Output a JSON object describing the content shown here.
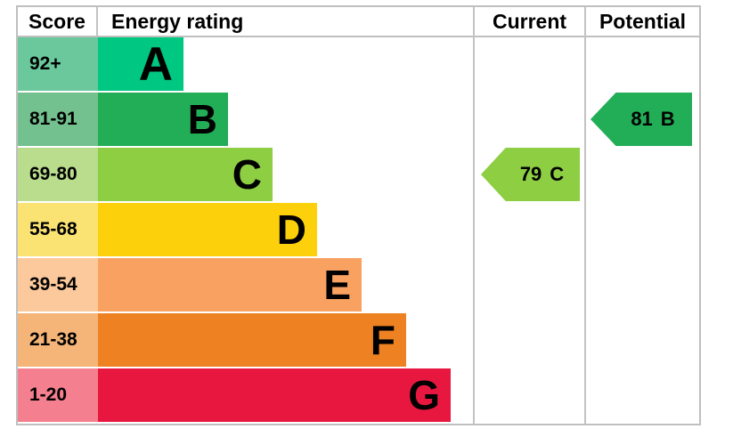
{
  "header": {
    "score": "Score",
    "energy_rating": "Energy rating",
    "current": "Current",
    "potential": "Potential"
  },
  "bands": [
    {
      "score": "92+",
      "letter": "A",
      "bar_color": "#00c781",
      "cell_color": "#6ac89c"
    },
    {
      "score": "81-91",
      "letter": "B",
      "bar_color": "#22ae57",
      "cell_color": "#73c18e"
    },
    {
      "score": "69-80",
      "letter": "C",
      "bar_color": "#8dce43",
      "cell_color": "#b9dc8d"
    },
    {
      "score": "55-68",
      "letter": "D",
      "bar_color": "#fcd00a",
      "cell_color": "#fae373"
    },
    {
      "score": "39-54",
      "letter": "E",
      "bar_color": "#f9a160",
      "cell_color": "#fbc99b"
    },
    {
      "score": "21-38",
      "letter": "F",
      "bar_color": "#ee8122",
      "cell_color": "#f5b578"
    },
    {
      "score": "1-20",
      "letter": "G",
      "bar_color": "#e8173f",
      "cell_color": "#f47f8e"
    }
  ],
  "current": {
    "value": "79",
    "letter": "C",
    "color": "#8dce43"
  },
  "potential": {
    "value": "81",
    "letter": "B",
    "color": "#22ae57"
  },
  "border_color": "#bfbfbf",
  "chart_data": {
    "type": "bar",
    "title": "Energy rating",
    "columns": [
      "Score",
      "Energy rating",
      "Current",
      "Potential"
    ],
    "categories": [
      "A",
      "B",
      "C",
      "D",
      "E",
      "F",
      "G"
    ],
    "score_ranges": [
      "92+",
      "81-91",
      "69-80",
      "55-68",
      "39-54",
      "21-38",
      "1-20"
    ],
    "band_colors": [
      "#00c781",
      "#22ae57",
      "#8dce43",
      "#fcd00a",
      "#f9a160",
      "#ee8122",
      "#e8173f"
    ],
    "current": {
      "score": 79,
      "rating": "C"
    },
    "potential": {
      "score": 81,
      "rating": "B"
    },
    "legend_position": "none",
    "grid": false
  }
}
